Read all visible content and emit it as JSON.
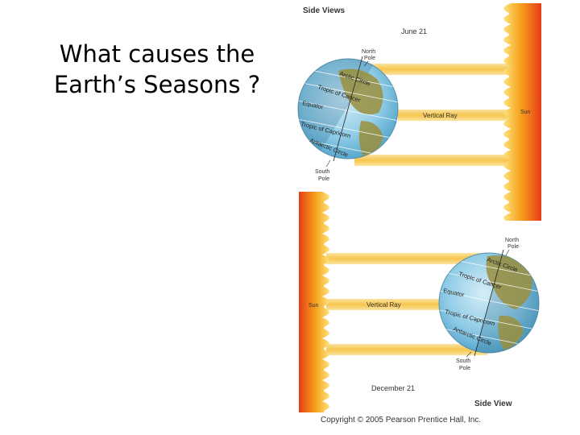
{
  "slide": {
    "title_line1": "What causes the",
    "title_line2": "Earth’s Seasons ?"
  },
  "top_panel": {
    "header": "Side Views",
    "date": "June 21",
    "north_pole": [
      "North",
      "Pole"
    ],
    "south_pole": [
      "South",
      "Pole"
    ],
    "arctic_circle": "Arctic Circle",
    "tropic_cancer": "Tropic of Cancer",
    "equator": "Equator",
    "tropic_capricorn": "Tropic of Capricorn",
    "antarctic_circle": "Antarctic Circle",
    "vertical_ray": "Vertical Ray",
    "sun": "Sun"
  },
  "bottom_panel": {
    "date": "December 21",
    "north_pole": [
      "North",
      "Pole"
    ],
    "south_pole": [
      "South",
      "Pole"
    ],
    "arctic_circle": "Arctic Circle",
    "tropic_cancer": "Tropic of Cancer",
    "equator": "Equator",
    "tropic_capricorn": "Tropic of Capricorn",
    "antarctic_circle": "Antarctic Circle",
    "vertical_ray": "Vertical Ray",
    "sun": "Sun",
    "footer": "Side View"
  },
  "copyright": "Copyright © 2005 Pearson Prentice Hall, Inc.",
  "colors": {
    "sun_outer": "#f7c21e",
    "sun_inner": "#e8491a",
    "ray": "#f9d274",
    "ocean": "#6fb6d6",
    "land": "#9a8f3e"
  }
}
